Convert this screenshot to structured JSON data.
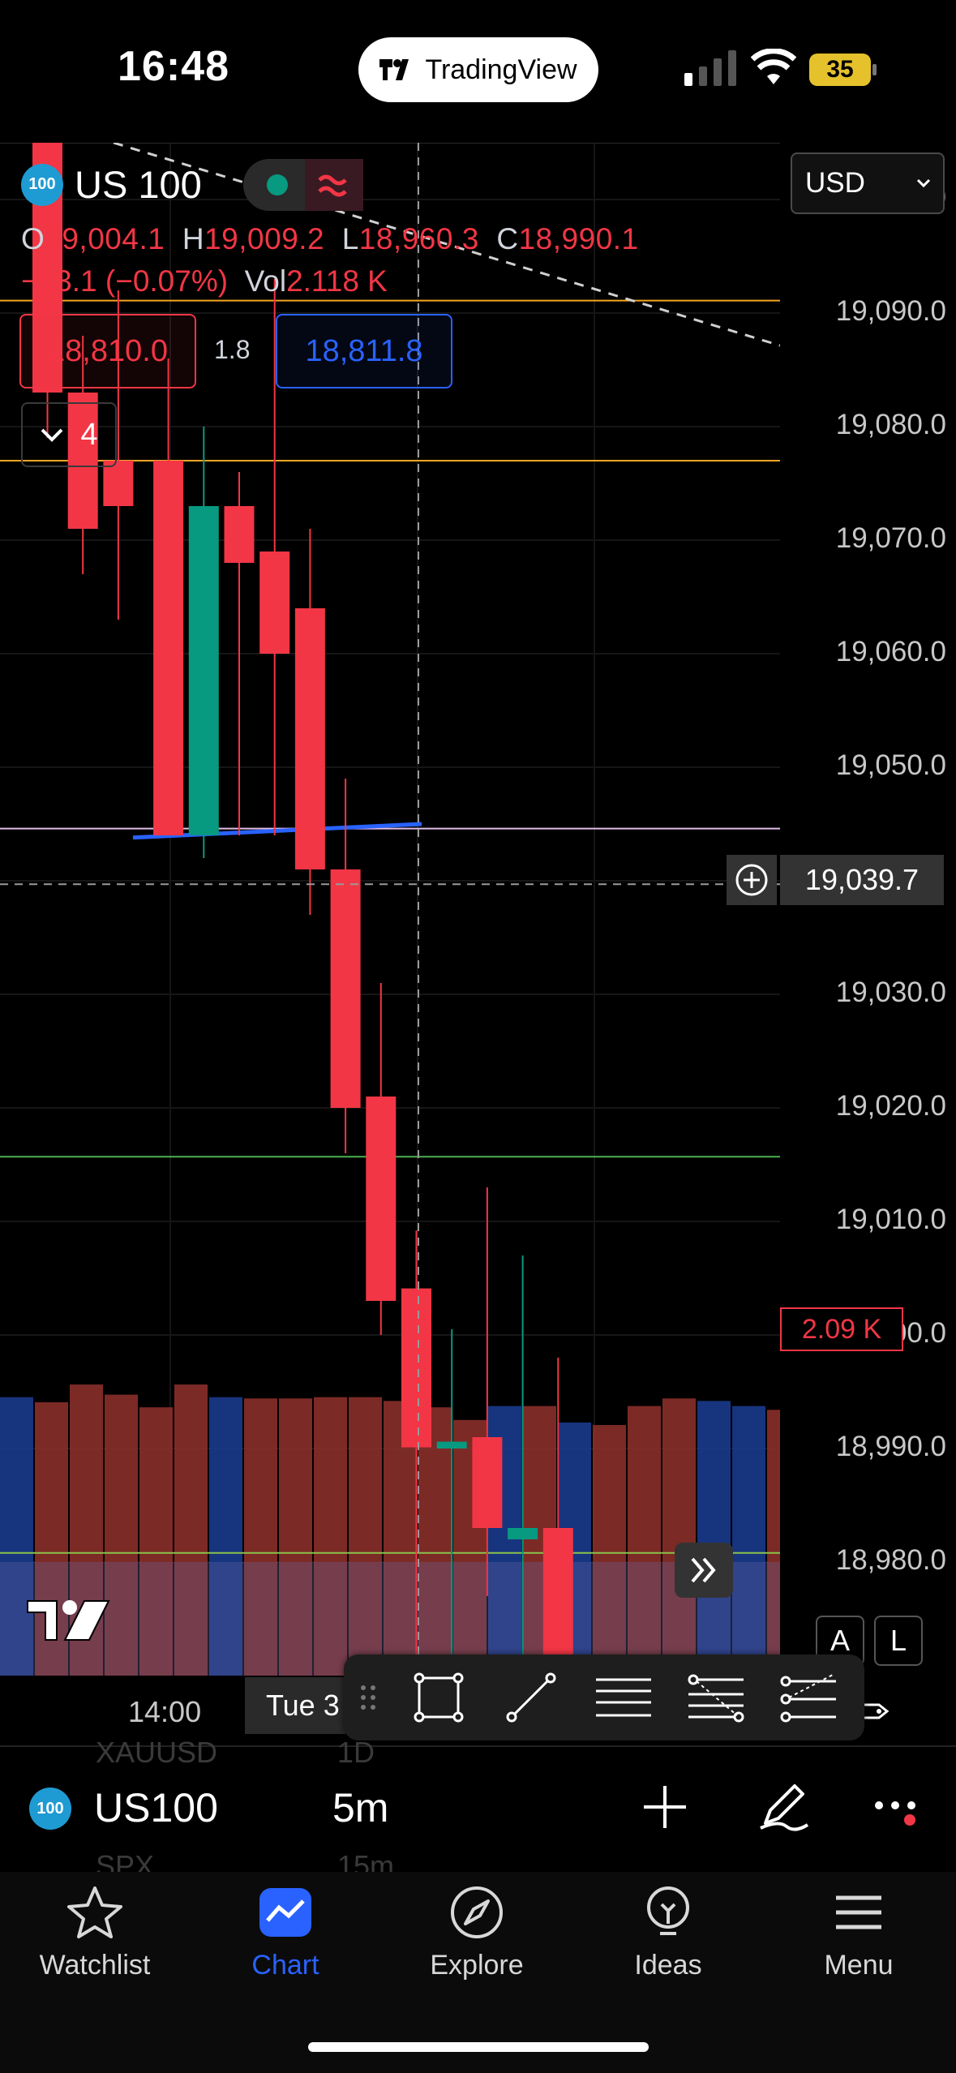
{
  "status_bar": {
    "time": "16:48",
    "app_name": "TradingView",
    "battery": "35"
  },
  "header": {
    "symbol_badge": "100",
    "symbol": "US 100",
    "currency": "USD",
    "ohlc": {
      "o_label": "O",
      "o": "19,004.1",
      "h_label": "H",
      "h": "19,009.2",
      "l_label": "L",
      "l": "18,960.3",
      "c_label": "C",
      "c": "18,990.1"
    },
    "change": "−13.1 (−0.07%)",
    "vol_label": "Vol",
    "vol": "2.118 K",
    "sell_price": "18,810.0",
    "spread": "1.8",
    "buy_price": "18,811.8",
    "indicator_count": "4"
  },
  "price_axis": {
    "ticks": [
      "19,100.0",
      "19,090.0",
      "19,080.0",
      "19,070.0",
      "19,060.0",
      "19,050.0",
      "19,030.0",
      "19,020.0",
      "19,010.0",
      "19,000.0",
      "18,990.0",
      "18,980.0"
    ],
    "crosshair_price": "19,039.7",
    "volume_label": "2.09 K"
  },
  "time_axis": {
    "label": "14:00",
    "hover_label": "Tue 3"
  },
  "chart_buttons": {
    "auto": "A",
    "log": "L"
  },
  "chart_data": {
    "type": "candlestick",
    "ylim": [
      18970,
      19105
    ],
    "up_color": "#089981",
    "down_color": "#f23645",
    "horizontal_lines": [
      {
        "price": 19091.1,
        "color": "#f5a623"
      },
      {
        "price": 19077.0,
        "color": "#f5a623"
      },
      {
        "price": 19044.6,
        "color": "#e1bee7"
      },
      {
        "price": 19015.7,
        "color": "#4caf50"
      },
      {
        "price": 18980.8,
        "color": "#8bc34a"
      }
    ],
    "candles": [
      {
        "o": 19105,
        "h": 19105,
        "l": 19079,
        "c": 19083
      },
      {
        "o": 19083,
        "h": 19088,
        "l": 19067,
        "c": 19071
      },
      {
        "o": 19077,
        "h": 19092,
        "l": 19063,
        "c": 19073
      },
      {
        "o": 19077,
        "h": 19086,
        "l": 19045,
        "c": 19044
      },
      {
        "o": 19044,
        "h": 19080,
        "l": 19042,
        "c": 19073
      },
      {
        "o": 19073,
        "h": 19076,
        "l": 19044,
        "c": 19068
      },
      {
        "o": 19069,
        "h": 19093,
        "l": 19044,
        "c": 19060
      },
      {
        "o": 19064,
        "h": 19071,
        "l": 19037,
        "c": 19041
      },
      {
        "o": 19041,
        "h": 19049,
        "l": 19016,
        "c": 19020
      },
      {
        "o": 19021,
        "h": 19031,
        "l": 19000,
        "c": 19003
      },
      {
        "o": 19004.1,
        "h": 19009.2,
        "l": 18960.3,
        "c": 18990.1
      },
      {
        "o": 18990,
        "h": 19000.5,
        "l": 18961,
        "c": 18990.6
      },
      {
        "o": 18991,
        "h": 19013,
        "l": 18977,
        "c": 18983
      },
      {
        "o": 18982,
        "h": 19007,
        "l": 18960,
        "c": 18983
      },
      {
        "o": 18983,
        "h": 18998,
        "l": 18960,
        "c": 18962
      }
    ],
    "volumes": [
      {
        "v": 2.2,
        "up": true
      },
      {
        "v": 2.16,
        "up": false
      },
      {
        "v": 2.3,
        "up": false
      },
      {
        "v": 2.22,
        "up": false
      },
      {
        "v": 2.12,
        "up": false
      },
      {
        "v": 2.3,
        "up": false
      },
      {
        "v": 2.2,
        "up": true
      },
      {
        "v": 2.19,
        "up": false
      },
      {
        "v": 2.19,
        "up": false
      },
      {
        "v": 2.2,
        "up": false
      },
      {
        "v": 2.2,
        "up": false
      },
      {
        "v": 2.17,
        "up": false
      },
      {
        "v": 2.12,
        "up": false
      },
      {
        "v": 2.02,
        "up": false
      },
      {
        "v": 2.13,
        "up": true
      },
      {
        "v": 2.13,
        "up": false
      },
      {
        "v": 2.0,
        "up": true
      },
      {
        "v": 1.98,
        "up": false
      },
      {
        "v": 2.13,
        "up": false
      },
      {
        "v": 2.19,
        "up": false
      },
      {
        "v": 2.17,
        "up": true
      },
      {
        "v": 2.13,
        "up": true
      },
      {
        "v": 2.1,
        "up": false
      },
      {
        "v": 2.09,
        "up": false
      }
    ]
  },
  "symbol_bar": {
    "badge": "100",
    "symbol": "US100",
    "interval": "5m",
    "ghost_symbol_above": "XAUUSD",
    "ghost_interval_above": "1D",
    "ghost_symbol_below": "SPX",
    "ghost_interval_below": "15m"
  },
  "tabs": [
    {
      "label": "Watchlist",
      "icon": "star-icon",
      "active": false
    },
    {
      "label": "Chart",
      "icon": "chart-icon",
      "active": true
    },
    {
      "label": "Explore",
      "icon": "compass-icon",
      "active": false
    },
    {
      "label": "Ideas",
      "icon": "lightbulb-icon",
      "active": false
    },
    {
      "label": "Menu",
      "icon": "hamburger-icon",
      "active": false
    }
  ]
}
